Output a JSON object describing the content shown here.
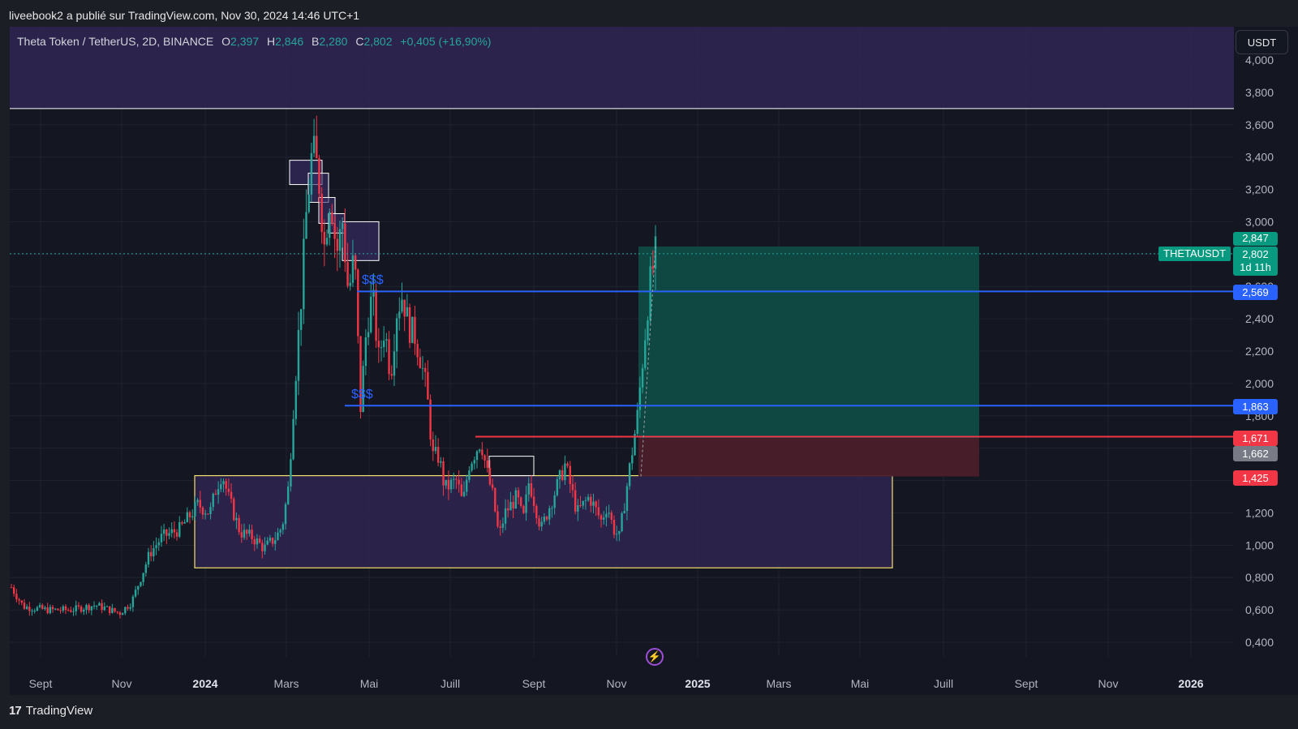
{
  "publisher_line": "liveebook2 a publié sur TradingView.com, Nov 30, 2024 14:46 UTC+1",
  "legend": {
    "symbol": "Theta Token / TetherUS, 2D, BINANCE",
    "o_label": "O",
    "o_value": "2,397",
    "h_label": "H",
    "h_value": "2,846",
    "b_label": "B",
    "b_value": "2,280",
    "c_label": "C",
    "c_value": "2,802",
    "change": "+0,405 (+16,90%)"
  },
  "currency_button": "USDT",
  "footer_brand": "TradingView",
  "footer_logo_mark": "17",
  "symbol_tag": "THETAUSDT",
  "price_badges": {
    "high": "2,847",
    "last": "2,802",
    "countdown": "1d 11h",
    "level_upper": "2,569",
    "level_lower": "1,863",
    "stop": "1,671",
    "entry": "1,662",
    "low": "1,425"
  },
  "annotations": {
    "upper_liquidity": "$$$",
    "lower_liquidity": "$$$"
  },
  "bolt_icon": "lightning-icon",
  "colors": {
    "up": "#26a69a",
    "down": "#f23645",
    "blue_line": "#2962ff",
    "red_line": "#f23645",
    "zone_purple": "#2e2550",
    "profit_zone": "#0f4a44",
    "loss_zone": "#4a1e2a",
    "yellow_box": "#f5e16b"
  },
  "chart_data": {
    "type": "candlestick",
    "y_ticks": [
      "4,000",
      "3,800",
      "3,600",
      "3,400",
      "3,200",
      "3,000",
      "2,800",
      "2,600",
      "2,400",
      "2,200",
      "2,000",
      "1,800",
      "1,600",
      "1,400",
      "1,200",
      "1,000",
      "0,800",
      "0,600",
      "0,400"
    ],
    "x_ticks": [
      "Sept",
      "Nov",
      "2024",
      "Mars",
      "Mai",
      "Juill",
      "Sept",
      "Nov",
      "2025",
      "Mars",
      "Mai",
      "Juill",
      "Sept",
      "Nov",
      "2026"
    ],
    "ylim": [
      0.3,
      4.1
    ],
    "price_path": [
      [
        0.0,
        0.74
      ],
      [
        0.01,
        0.62
      ],
      [
        0.03,
        0.6
      ],
      [
        0.05,
        0.6
      ],
      [
        0.07,
        0.63
      ],
      [
        0.09,
        0.58
      ],
      [
        0.1,
        0.65
      ],
      [
        0.115,
        0.95
      ],
      [
        0.125,
        1.05
      ],
      [
        0.14,
        1.1
      ],
      [
        0.155,
        1.25
      ],
      [
        0.165,
        1.2
      ],
      [
        0.17,
        1.35
      ],
      [
        0.175,
        1.45
      ],
      [
        0.18,
        1.3
      ],
      [
        0.19,
        1.08
      ],
      [
        0.2,
        1.05
      ],
      [
        0.21,
        0.98
      ],
      [
        0.22,
        1.05
      ],
      [
        0.225,
        1.12
      ],
      [
        0.23,
        1.35
      ],
      [
        0.235,
        1.95
      ],
      [
        0.24,
        2.45
      ],
      [
        0.245,
        3.05
      ],
      [
        0.25,
        3.45
      ],
      [
        0.255,
        3.3
      ],
      [
        0.26,
        2.85
      ],
      [
        0.265,
        3.2
      ],
      [
        0.27,
        2.8
      ],
      [
        0.275,
        3.0
      ],
      [
        0.28,
        2.55
      ],
      [
        0.285,
        2.8
      ],
      [
        0.29,
        1.85
      ],
      [
        0.295,
        2.35
      ],
      [
        0.3,
        2.55
      ],
      [
        0.305,
        2.15
      ],
      [
        0.31,
        2.35
      ],
      [
        0.315,
        2.05
      ],
      [
        0.32,
        2.45
      ],
      [
        0.325,
        2.55
      ],
      [
        0.33,
        2.35
      ],
      [
        0.335,
        2.3
      ],
      [
        0.34,
        2.15
      ],
      [
        0.345,
        1.95
      ],
      [
        0.35,
        1.55
      ],
      [
        0.355,
        1.55
      ],
      [
        0.36,
        1.35
      ],
      [
        0.37,
        1.4
      ],
      [
        0.375,
        1.25
      ],
      [
        0.38,
        1.5
      ],
      [
        0.39,
        1.65
      ],
      [
        0.395,
        1.45
      ],
      [
        0.4,
        1.3
      ],
      [
        0.405,
        1.05
      ],
      [
        0.41,
        1.2
      ],
      [
        0.42,
        1.3
      ],
      [
        0.425,
        1.15
      ],
      [
        0.43,
        1.4
      ],
      [
        0.44,
        1.1
      ],
      [
        0.45,
        1.3
      ],
      [
        0.46,
        1.5
      ],
      [
        0.465,
        1.35
      ],
      [
        0.47,
        1.2
      ],
      [
        0.48,
        1.3
      ],
      [
        0.49,
        1.15
      ],
      [
        0.495,
        1.25
      ],
      [
        0.5,
        1.1
      ],
      [
        0.505,
        1.05
      ],
      [
        0.51,
        1.3
      ],
      [
        0.515,
        1.55
      ],
      [
        0.52,
        1.8
      ],
      [
        0.525,
        2.2
      ],
      [
        0.53,
        2.6
      ],
      [
        0.535,
        2.8
      ]
    ],
    "levels": {
      "top_white_line": 3.7,
      "upper_blue_line": 2.569,
      "lower_blue_line": 1.863,
      "red_line": 1.671,
      "profit_top": 2.847,
      "entry": 1.662,
      "stop_bottom": 1.425,
      "yellow_box_top": 1.43,
      "yellow_box_bottom": 0.86,
      "upper_purple_zone_top": 4.3,
      "upper_purple_zone_bottom": 3.7
    }
  }
}
